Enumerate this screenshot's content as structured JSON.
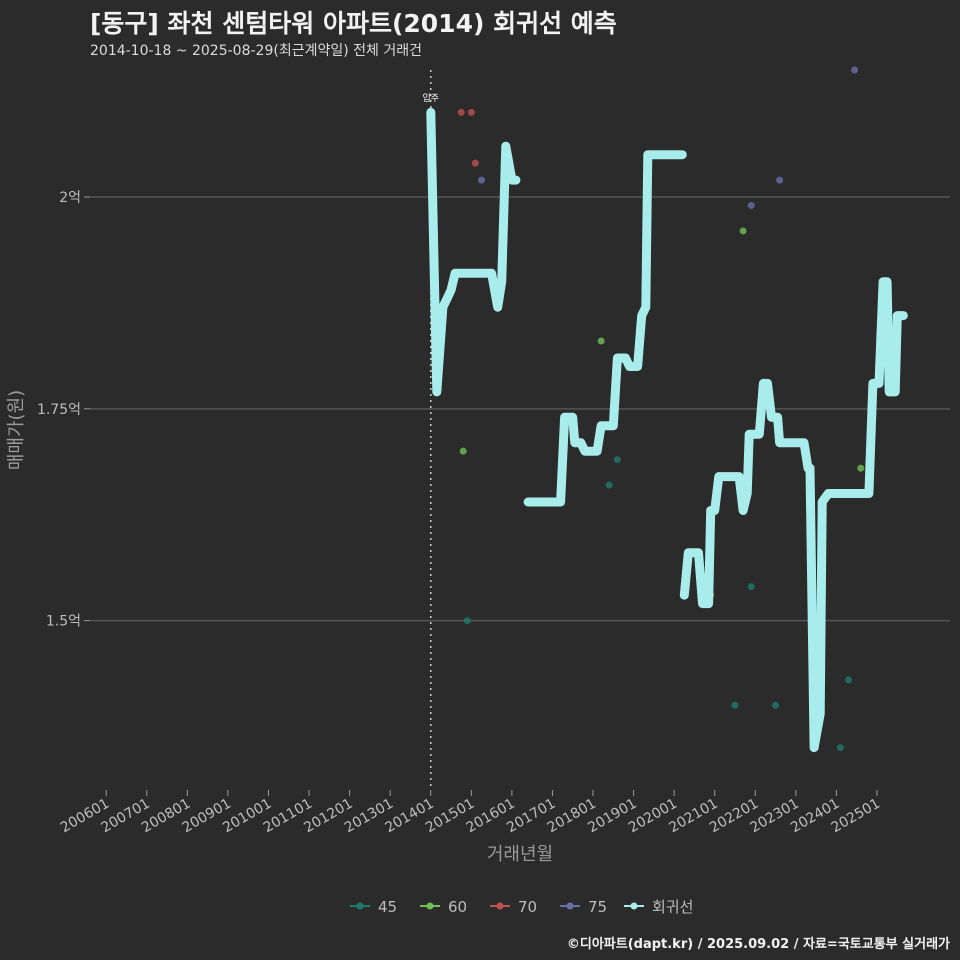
{
  "header": {
    "title": "[동구] 좌천 센텀타워 아파트(2014) 회귀선 예측",
    "subtitle": "2014-10-18 ~ 2025-08-29(최근계약일) 전체 거래건"
  },
  "footer": {
    "text": "©디아파트(dapt.kr) / 2025.09.02 / 자료=국토교통부 실거래가"
  },
  "colors": {
    "background": "#2b2b2b",
    "grid": "#555555",
    "s45": "#1f7a6e",
    "s60": "#6fbf55",
    "s70": "#c0504d",
    "s75": "#6a6fa8",
    "regression": "#a8ecec"
  },
  "chart_data": {
    "type": "scatter",
    "xlabel": "거래년월",
    "ylabel": "매매가(원)",
    "x_ticks": [
      "200601",
      "200701",
      "200801",
      "200901",
      "201001",
      "201101",
      "201201",
      "201301",
      "201401",
      "201501",
      "201601",
      "201701",
      "201801",
      "201901",
      "202001",
      "202101",
      "202201",
      "202301",
      "202401",
      "202501"
    ],
    "y_ticks": [
      {
        "value": 1.5,
        "label": "1.5억"
      },
      {
        "value": 1.75,
        "label": "1.75억"
      },
      {
        "value": 2.0,
        "label": "2억"
      }
    ],
    "xlim": [
      2005.6,
      2026.8
    ],
    "ylim": [
      1.3,
      2.15
    ],
    "annotation": {
      "x": 2014.0,
      "label": "입주"
    },
    "legend": [
      {
        "name": "45",
        "color": "#1f7a6e"
      },
      {
        "name": "60",
        "color": "#6fbf55"
      },
      {
        "name": "70",
        "color": "#c0504d"
      },
      {
        "name": "75",
        "color": "#6a6fa8"
      },
      {
        "name": "회귀선",
        "color": "#a8ecec"
      }
    ],
    "series": [
      {
        "name": "45",
        "color": "#1f7a6e",
        "points": [
          [
            2014.9,
            1.5
          ],
          [
            2018.4,
            1.66
          ],
          [
            2018.6,
            1.69
          ],
          [
            2021.5,
            1.4
          ],
          [
            2021.9,
            1.54
          ],
          [
            2022.5,
            1.4
          ],
          [
            2024.1,
            1.35
          ],
          [
            2024.3,
            1.43
          ]
        ]
      },
      {
        "name": "60",
        "color": "#6fbf55",
        "points": [
          [
            2014.8,
            1.7
          ],
          [
            2018.2,
            1.83
          ],
          [
            2020.9,
            1.53
          ],
          [
            2021.7,
            1.96
          ],
          [
            2024.6,
            1.68
          ]
        ]
      },
      {
        "name": "70",
        "color": "#c0504d",
        "points": [
          [
            2014.75,
            2.1
          ],
          [
            2015.0,
            2.1
          ],
          [
            2015.1,
            2.04
          ]
        ]
      },
      {
        "name": "75",
        "color": "#6a6fa8",
        "points": [
          [
            2015.25,
            2.02
          ],
          [
            2021.9,
            1.99
          ],
          [
            2022.6,
            2.02
          ],
          [
            2024.45,
            2.15
          ]
        ]
      }
    ],
    "regression": [
      [
        2014.0,
        2.1
      ],
      [
        2014.15,
        1.77
      ],
      [
        2014.3,
        1.87
      ],
      [
        2014.4,
        1.88
      ],
      [
        2014.5,
        1.89
      ],
      [
        2014.6,
        1.91
      ],
      [
        2015.4,
        1.91
      ],
      [
        2015.5,
        1.91
      ],
      [
        2015.65,
        1.87
      ],
      [
        2015.75,
        1.9
      ],
      [
        2015.85,
        2.06
      ],
      [
        2016.0,
        2.02
      ],
      [
        2016.1,
        2.02
      ],
      null,
      [
        2016.4,
        1.64
      ],
      [
        2017.2,
        1.64
      ],
      [
        2017.3,
        1.74
      ],
      [
        2017.5,
        1.74
      ],
      [
        2017.55,
        1.71
      ],
      [
        2017.7,
        1.71
      ],
      [
        2017.8,
        1.7
      ],
      [
        2018.1,
        1.7
      ],
      [
        2018.2,
        1.73
      ],
      [
        2018.5,
        1.73
      ],
      [
        2018.6,
        1.81
      ],
      [
        2018.8,
        1.81
      ],
      [
        2018.9,
        1.8
      ],
      [
        2019.1,
        1.8
      ],
      [
        2019.2,
        1.86
      ],
      [
        2019.3,
        1.87
      ],
      [
        2019.35,
        2.05
      ],
      [
        2019.5,
        2.05
      ],
      [
        2020.2,
        2.05
      ],
      null,
      [
        2020.25,
        1.53
      ],
      [
        2020.35,
        1.58
      ],
      [
        2020.6,
        1.58
      ],
      [
        2020.7,
        1.52
      ],
      [
        2020.85,
        1.52
      ],
      [
        2020.9,
        1.63
      ],
      [
        2021.0,
        1.63
      ],
      [
        2021.1,
        1.67
      ],
      [
        2021.6,
        1.67
      ],
      [
        2021.7,
        1.63
      ],
      [
        2021.8,
        1.65
      ],
      [
        2021.85,
        1.72
      ],
      [
        2022.1,
        1.72
      ],
      [
        2022.2,
        1.78
      ],
      [
        2022.3,
        1.78
      ],
      [
        2022.4,
        1.74
      ],
      [
        2022.55,
        1.74
      ],
      [
        2022.6,
        1.71
      ],
      [
        2023.2,
        1.71
      ],
      [
        2023.3,
        1.68
      ],
      [
        2023.35,
        1.68
      ],
      [
        2023.45,
        1.35
      ],
      [
        2023.6,
        1.39
      ],
      [
        2023.65,
        1.64
      ],
      [
        2023.8,
        1.65
      ],
      [
        2024.8,
        1.65
      ],
      [
        2024.9,
        1.78
      ],
      [
        2025.05,
        1.78
      ],
      [
        2025.15,
        1.9
      ],
      [
        2025.25,
        1.9
      ],
      [
        2025.3,
        1.77
      ],
      [
        2025.45,
        1.77
      ],
      [
        2025.5,
        1.86
      ],
      [
        2025.65,
        1.86
      ]
    ]
  }
}
